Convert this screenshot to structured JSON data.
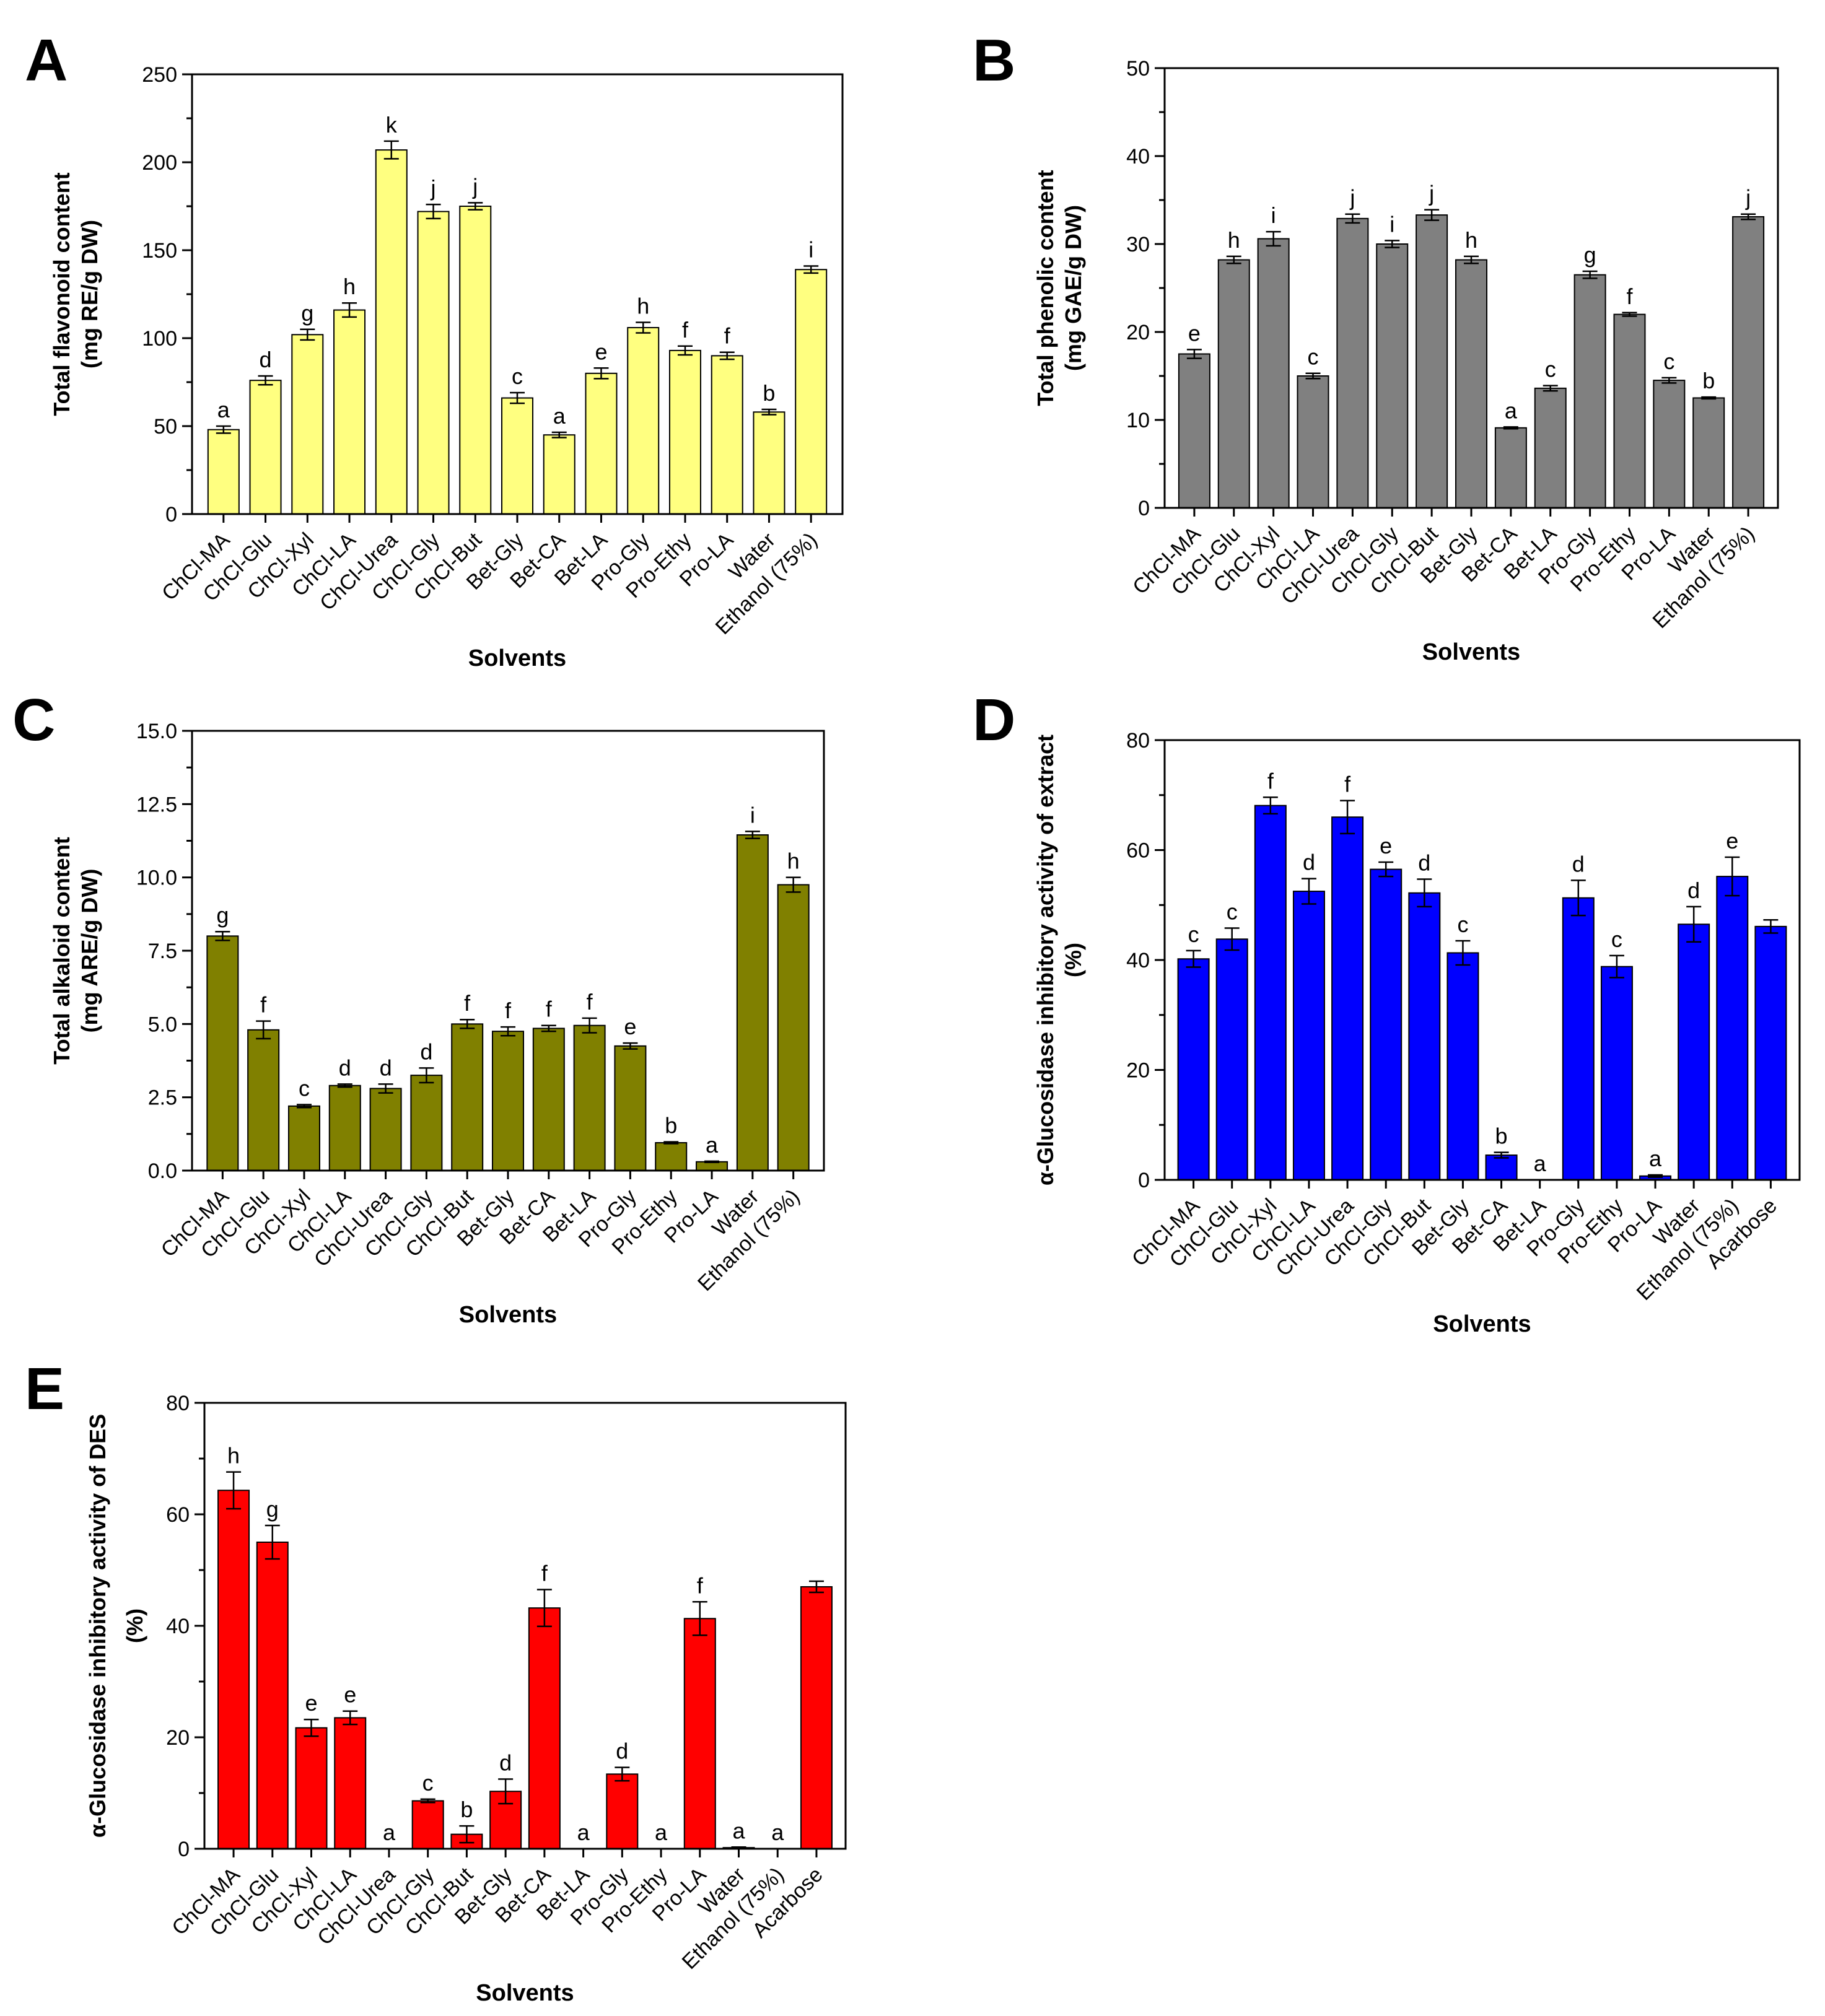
{
  "chart_data": [
    {
      "panel": "A",
      "type": "bar",
      "xlabel": "Solvents",
      "ylabel": [
        "Total flavonoid content",
        "(mg RE/g DW)"
      ],
      "ylim": [
        0,
        250
      ],
      "yticks": [
        0,
        50,
        100,
        150,
        200,
        250
      ],
      "tick_labels": [
        "0",
        "50",
        "100",
        "150",
        "200",
        "250"
      ],
      "bar_color": "#ffff80",
      "categories": [
        "ChCl-MA",
        "ChCl-Glu",
        "ChCl-Xyl",
        "ChCl-LA",
        "ChCl-Urea",
        "ChCl-Gly",
        "ChCl-But",
        "Bet-Gly",
        "Bet-CA",
        "Bet-LA",
        "Pro-Gly",
        "Pro-Ethy",
        "Pro-LA",
        "Water",
        "Ethanol (75%)"
      ],
      "values": [
        48,
        76,
        102,
        116,
        207,
        172,
        175,
        66,
        45,
        80,
        106,
        93,
        90,
        58,
        139
      ],
      "errors": [
        2,
        2.5,
        3,
        4,
        5,
        4,
        2,
        3,
        1.5,
        3,
        3,
        2.5,
        2,
        1.5,
        2
      ],
      "letters": [
        "a",
        "d",
        "g",
        "h",
        "k",
        "j",
        "j",
        "c",
        "a",
        "e",
        "h",
        "f",
        "f",
        "b",
        "i"
      ]
    },
    {
      "panel": "B",
      "type": "bar",
      "xlabel": "Solvents",
      "ylabel": [
        "Total phenolic content",
        "(mg GAE/g DW)"
      ],
      "ylim": [
        0,
        50
      ],
      "yticks": [
        0,
        10,
        20,
        30,
        40,
        50
      ],
      "tick_labels": [
        "0",
        "10",
        "20",
        "30",
        "40",
        "50"
      ],
      "bar_color": "#808080",
      "categories": [
        "ChCl-MA",
        "ChCl-Glu",
        "ChCl-Xyl",
        "ChCl-LA",
        "ChCl-Urea",
        "ChCl-Gly",
        "ChCl-But",
        "Bet-Gly",
        "Bet-CA",
        "Bet-LA",
        "Pro-Gly",
        "Pro-Ethy",
        "Pro-LA",
        "Water",
        "Ethanol (75%)"
      ],
      "values": [
        17.5,
        28.2,
        30.6,
        15.0,
        32.9,
        30.0,
        33.3,
        28.2,
        9.1,
        13.6,
        26.5,
        22.0,
        14.5,
        12.5,
        33.1
      ],
      "errors": [
        0.5,
        0.4,
        0.8,
        0.3,
        0.5,
        0.4,
        0.6,
        0.4,
        0.1,
        0.3,
        0.4,
        0.2,
        0.3,
        0.1,
        0.3
      ],
      "letters": [
        "e",
        "h",
        "i",
        "c",
        "j",
        "i",
        "j",
        "h",
        "a",
        "c",
        "g",
        "f",
        "c",
        "b",
        "j"
      ]
    },
    {
      "panel": "C",
      "type": "bar",
      "xlabel": "Solvents",
      "ylabel": [
        "Total alkaloid content",
        "(mg ARE/g DW)"
      ],
      "ylim": [
        0,
        15
      ],
      "yticks": [
        0,
        2.5,
        5,
        7.5,
        10,
        12.5,
        15
      ],
      "tick_labels": [
        "0.0",
        "2.5",
        "5.0",
        "7.5",
        "10.0",
        "12.5",
        "15.0"
      ],
      "bar_color": "#808000",
      "categories": [
        "ChCl-MA",
        "ChCl-Glu",
        "ChCl-Xyl",
        "ChCl-LA",
        "ChCl-Urea",
        "ChCl-Gly",
        "ChCl-But",
        "Bet-Gly",
        "Bet-CA",
        "Bet-LA",
        "Pro-Gly",
        "Pro-Ethy",
        "Pro-LA",
        "Water",
        "Ethanol (75%)"
      ],
      "values": [
        8.0,
        4.8,
        2.2,
        2.9,
        2.8,
        3.25,
        5.0,
        4.75,
        4.85,
        4.95,
        4.25,
        0.95,
        0.3,
        11.45,
        9.75
      ],
      "errors": [
        0.15,
        0.3,
        0.05,
        0.05,
        0.15,
        0.25,
        0.15,
        0.15,
        0.1,
        0.25,
        0.1,
        0.03,
        0.02,
        0.12,
        0.25
      ],
      "letters": [
        "g",
        "f",
        "c",
        "d",
        "d",
        "d",
        "f",
        "f",
        "f",
        "f",
        "e",
        "b",
        "a",
        "i",
        "h"
      ]
    },
    {
      "panel": "D",
      "type": "bar",
      "xlabel": "Solvents",
      "ylabel": [
        "α-Glucosidase inhibitory activity of extract",
        "(%)"
      ],
      "ylim": [
        0,
        80
      ],
      "yticks": [
        0,
        20,
        40,
        60,
        80
      ],
      "tick_labels": [
        "0",
        "20",
        "40",
        "60",
        "80"
      ],
      "bar_color": "#0000ff",
      "categories": [
        "ChCl-MA",
        "ChCl-Glu",
        "ChCl-Xyl",
        "ChCl-LA",
        "ChCl-Urea",
        "ChCl-Gly",
        "ChCl-But",
        "Bet-Gly",
        "Bet-CA",
        "Bet-LA",
        "Pro-Gly",
        "Pro-Ethy",
        "Pro-LA",
        "Water",
        "Ethanol (75%)",
        "Acarbose"
      ],
      "values": [
        40.2,
        43.8,
        68.1,
        52.5,
        66.0,
        56.5,
        52.2,
        41.3,
        4.5,
        0,
        51.3,
        38.8,
        0.7,
        46.5,
        55.2,
        46.1
      ],
      "errors": [
        1.5,
        2.0,
        1.5,
        2.3,
        3.0,
        1.3,
        2.5,
        2.2,
        0.5,
        0,
        3.2,
        2.0,
        0.2,
        3.2,
        3.5,
        1.2
      ],
      "letters": [
        "c",
        "c",
        "f",
        "d",
        "f",
        "e",
        "d",
        "c",
        "b",
        "a",
        "d",
        "c",
        "a",
        "d",
        "e",
        ""
      ]
    },
    {
      "panel": "E",
      "type": "bar",
      "xlabel": "Solvents",
      "ylabel": [
        "α-Glucosidase inhibitory activity of DES",
        "(%)"
      ],
      "ylim": [
        0,
        80
      ],
      "yticks": [
        0,
        20,
        40,
        60,
        80
      ],
      "tick_labels": [
        "0",
        "20",
        "40",
        "60",
        "80"
      ],
      "bar_color": "#ff0000",
      "categories": [
        "ChCl-MA",
        "ChCl-Glu",
        "ChCl-Xyl",
        "ChCl-LA",
        "ChCl-Urea",
        "ChCl-Gly",
        "ChCl-But",
        "Bet-Gly",
        "Bet-CA",
        "Bet-LA",
        "Pro-Gly",
        "Pro-Ethy",
        "Pro-LA",
        "Water",
        "Ethanol (75%)",
        "Acarbose"
      ],
      "values": [
        64.3,
        55.0,
        21.7,
        23.5,
        0,
        8.6,
        2.6,
        10.3,
        43.2,
        0,
        13.4,
        0,
        41.3,
        0.2,
        0,
        47.0
      ],
      "errors": [
        3.3,
        3.0,
        1.5,
        1.2,
        0,
        0.3,
        1.5,
        2.2,
        3.3,
        0,
        1.2,
        0,
        3.0,
        0.1,
        0,
        1.0
      ],
      "letters": [
        "h",
        "g",
        "e",
        "e",
        "a",
        "c",
        "b",
        "d",
        "f",
        "a",
        "d",
        "a",
        "f",
        "a",
        "a",
        ""
      ]
    }
  ]
}
